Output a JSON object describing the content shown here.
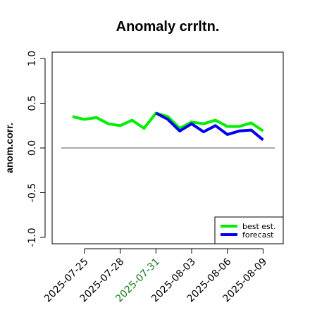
{
  "chart_data": {
    "type": "line",
    "title": "Anomaly crrltn.",
    "ylabel": "anom.corr.",
    "xlabel": "",
    "ylim": [
      -1.05,
      1.05
    ],
    "yticks": [
      -1.0,
      -0.5,
      0.0,
      0.5,
      1.0
    ],
    "ytick_labels": [
      "-1.0",
      "-0.5",
      "0.0",
      "0.5",
      "1.0"
    ],
    "x_categories": [
      "2025-07-24",
      "2025-07-25",
      "2025-07-26",
      "2025-07-27",
      "2025-07-28",
      "2025-07-29",
      "2025-07-30",
      "2025-07-31",
      "2025-08-01",
      "2025-08-02",
      "2025-08-03",
      "2025-08-04",
      "2025-08-05",
      "2025-08-06",
      "2025-08-07",
      "2025-08-08",
      "2025-08-09"
    ],
    "xticks": [
      "2025-07-25",
      "2025-07-28",
      "2025-07-31",
      "2025-08-03",
      "2025-08-06",
      "2025-08-09"
    ],
    "xtick_colors": [
      "#000000",
      "#000000",
      "#1b7a1b",
      "#000000",
      "#000000",
      "#000000"
    ],
    "reference_line": 0.0,
    "series": [
      {
        "name": "best est.",
        "color": "#00ee00",
        "x": [
          "2025-07-24",
          "2025-07-25",
          "2025-07-26",
          "2025-07-27",
          "2025-07-28",
          "2025-07-29",
          "2025-07-30",
          "2025-07-31",
          "2025-08-01",
          "2025-08-02",
          "2025-08-03",
          "2025-08-04",
          "2025-08-05",
          "2025-08-06",
          "2025-08-07",
          "2025-08-08",
          "2025-08-09"
        ],
        "values": [
          0.35,
          0.32,
          0.34,
          0.27,
          0.25,
          0.31,
          0.22,
          0.39,
          0.35,
          0.22,
          0.29,
          0.27,
          0.31,
          0.24,
          0.24,
          0.28,
          0.19
        ]
      },
      {
        "name": "forecast",
        "color": "#0000ee",
        "x": [
          "2025-07-31",
          "2025-08-01",
          "2025-08-02",
          "2025-08-03",
          "2025-08-04",
          "2025-08-05",
          "2025-08-06",
          "2025-08-07",
          "2025-08-08",
          "2025-08-09"
        ],
        "values": [
          0.39,
          0.32,
          0.19,
          0.27,
          0.18,
          0.25,
          0.15,
          0.19,
          0.2,
          0.09
        ]
      }
    ],
    "legend": {
      "placement": "bottom-right",
      "entries": [
        "best est.",
        "forecast"
      ]
    },
    "grid": false
  }
}
